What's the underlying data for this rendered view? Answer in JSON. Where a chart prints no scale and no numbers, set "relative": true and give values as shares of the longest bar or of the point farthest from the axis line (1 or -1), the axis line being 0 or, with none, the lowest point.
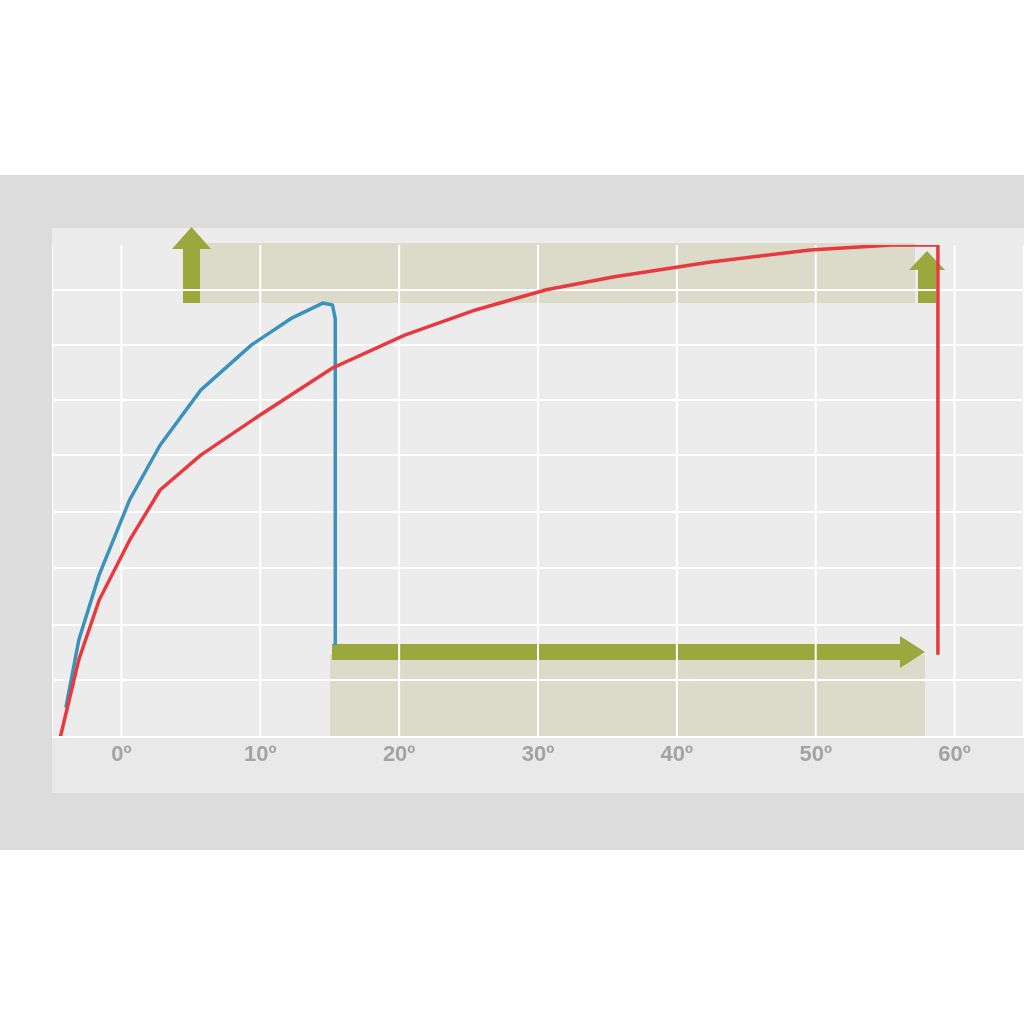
{
  "chart_data": {
    "type": "line",
    "relative": true,
    "xlim": [
      -5,
      65
    ],
    "xticks": [
      {
        "value": 0,
        "label": "0º"
      },
      {
        "value": 10,
        "label": "10º"
      },
      {
        "value": 20,
        "label": "20º"
      },
      {
        "value": 30,
        "label": "30º"
      },
      {
        "value": 40,
        "label": "40º"
      },
      {
        "value": 50,
        "label": "50º"
      },
      {
        "value": 60,
        "label": "60º"
      }
    ],
    "grid": true,
    "series": [
      {
        "color": "#3b93bd",
        "x": [
          -4.0,
          -3.07,
          -1.61,
          0.59,
          2.78,
          5.71,
          9.37,
          12.3,
          14.5,
          15.2,
          15.4,
          15.4
        ],
        "values": [
          0.06,
          0.197,
          0.329,
          0.482,
          0.593,
          0.705,
          0.797,
          0.852,
          0.882,
          0.878,
          0.85,
          0.187
        ]
      },
      {
        "color": "#e8393f",
        "x": [
          -4.4,
          -3.07,
          -1.61,
          0.59,
          2.78,
          5.71,
          9.96,
          15.2,
          20.4,
          25.5,
          30.6,
          35.4,
          42.3,
          49.6,
          55.5,
          58.1,
          58.8,
          58.8
        ],
        "values": [
          0,
          0.157,
          0.278,
          0.4,
          0.502,
          0.573,
          0.654,
          0.75,
          0.817,
          0.868,
          0.909,
          0.935,
          0.965,
          0.99,
          1,
          1,
          1,
          0.167
        ]
      }
    ]
  }
}
